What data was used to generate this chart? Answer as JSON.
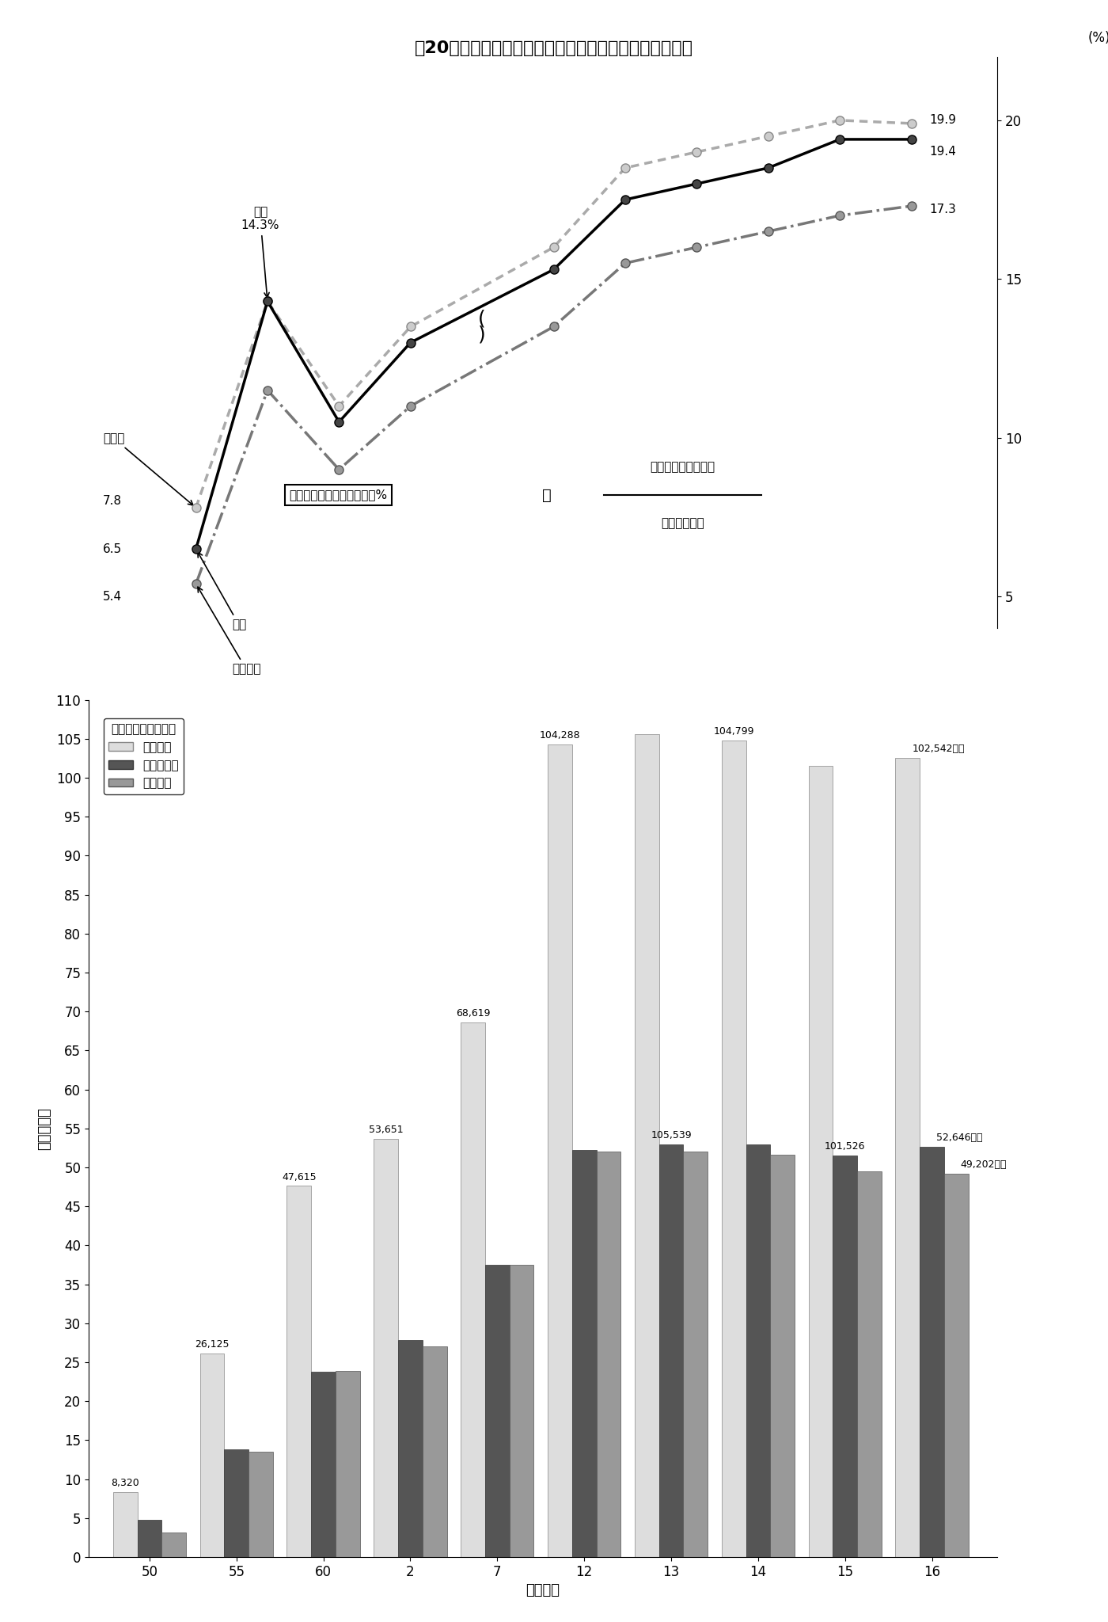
{
  "title": "第20図　公債費充当一般財源及び公債費負担比率の推移",
  "line_junkai": [
    6.5,
    14.3,
    10.5,
    13.0,
    15.3,
    17.5,
    18.0,
    18.5,
    19.4,
    19.4
  ],
  "line_shichoson": [
    7.8,
    14.3,
    11.0,
    13.5,
    16.0,
    18.5,
    19.0,
    19.5,
    20.0,
    19.9
  ],
  "line_todofuken": [
    5.4,
    11.5,
    9.0,
    11.0,
    13.5,
    15.5,
    16.0,
    16.5,
    17.0,
    17.3
  ],
  "x_line": [
    0,
    1,
    2,
    3,
    5,
    6,
    7,
    8,
    9,
    10
  ],
  "bar_labels": [
    "50",
    "55",
    "60",
    "2",
    "7",
    "12",
    "13",
    "14",
    "15",
    "16"
  ],
  "bar_junkai": [
    8320,
    26125,
    47615,
    53651,
    68619,
    104288,
    105539,
    104799,
    101526,
    102542
  ],
  "bar_shichoson": [
    4800,
    13800,
    23800,
    27800,
    37500,
    52200,
    53000,
    53000,
    51500,
    52646
  ],
  "bar_todofuken": [
    3200,
    13500,
    23900,
    27000,
    37500,
    52000,
    52000,
    51600,
    49500,
    49202
  ],
  "line_color_junkai": "#222222",
  "line_color_shichoson": "#888888",
  "line_color_todofuken": "#aaaaaa",
  "bar_color_junkai": "#dddddd",
  "bar_color_shichoson": "#555555",
  "bar_color_todofuken": "#999999",
  "ylim_line": [
    4,
    22
  ],
  "yticks_line": [
    5,
    10,
    15,
    20
  ]
}
